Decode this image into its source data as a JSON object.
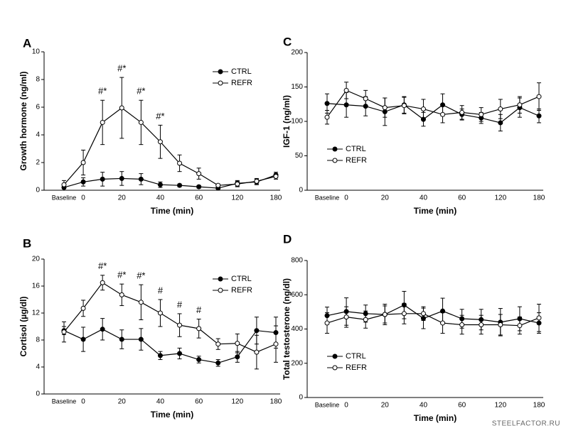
{
  "chart_data": [
    {
      "type": "line",
      "panel": "A",
      "x_label": "Time (min)",
      "y_label": "Growth hormone (ng/ml)",
      "categories": [
        "Baseline",
        "0",
        null,
        "20",
        null,
        "40",
        null,
        "60",
        null,
        "120",
        null,
        "180"
      ],
      "ylim": [
        0,
        10
      ],
      "yticks": [
        0,
        2,
        4,
        6,
        8,
        10
      ],
      "legend": "upper right",
      "series": [
        {
          "name": "CTRL",
          "color": "#000000",
          "marker_fill": "#000000",
          "values": [
            0.2,
            0.6,
            0.8,
            0.85,
            0.8,
            0.4,
            0.35,
            0.25,
            0.15,
            0.5,
            0.6,
            1.1
          ],
          "errors": [
            0.2,
            0.3,
            0.5,
            0.5,
            0.4,
            0.2,
            0.1,
            0.1,
            0.05,
            0.2,
            0.2,
            0.2
          ]
        },
        {
          "name": "REFR",
          "color": "#000000",
          "marker_fill": "#ffffff",
          "values": [
            0.4,
            2.0,
            4.9,
            5.95,
            4.9,
            3.5,
            1.95,
            1.2,
            0.35,
            0.45,
            0.65,
            1.0
          ],
          "errors": [
            0.3,
            0.9,
            1.6,
            2.2,
            1.6,
            1.2,
            0.6,
            0.4,
            0.1,
            0.2,
            0.2,
            0.2
          ]
        }
      ],
      "annotations": [
        null,
        null,
        "#*",
        "#*",
        "#*",
        "#*",
        null,
        null,
        null,
        null,
        null,
        null
      ]
    },
    {
      "type": "line",
      "panel": "B",
      "x_label": "Time (min)",
      "y_label": "Cortisol (µg/dl)",
      "categories": [
        "Baseline",
        "0",
        null,
        "20",
        null,
        "40",
        null,
        "60",
        null,
        "120",
        null,
        "180"
      ],
      "ylim": [
        0,
        20
      ],
      "yticks": [
        0,
        4,
        8,
        12,
        16,
        20
      ],
      "legend": "upper right",
      "series": [
        {
          "name": "CTRL",
          "color": "#000000",
          "marker_fill": "#000000",
          "values": [
            9.4,
            8.1,
            9.6,
            8.1,
            8.1,
            5.7,
            6.0,
            5.1,
            4.6,
            5.5,
            9.4,
            9.1
          ],
          "errors": [
            0.6,
            1.8,
            1.6,
            1.4,
            1.6,
            0.6,
            0.8,
            0.5,
            0.5,
            0.8,
            2.0,
            2.3
          ]
        },
        {
          "name": "REFR",
          "color": "#000000",
          "marker_fill": "#ffffff",
          "values": [
            9.2,
            12.7,
            16.5,
            14.7,
            13.6,
            12.0,
            10.2,
            9.7,
            7.4,
            7.5,
            6.2,
            7.4
          ],
          "errors": [
            1.5,
            1.2,
            1.1,
            1.6,
            2.6,
            2.0,
            1.7,
            1.4,
            0.8,
            1.4,
            2.5,
            2.7
          ]
        }
      ],
      "annotations": [
        null,
        null,
        "#*",
        "#*",
        "#*",
        "#",
        "#",
        "#",
        null,
        null,
        null,
        null
      ]
    },
    {
      "type": "line",
      "panel": "C",
      "x_label": "Time (min)",
      "y_label": "IGF-1 (ng/ml)",
      "categories": [
        "Baseline",
        "0",
        null,
        "20",
        null,
        "40",
        null,
        "60",
        null,
        "120",
        null,
        "180"
      ],
      "ylim": [
        0,
        200
      ],
      "yticks": [
        0,
        50,
        100,
        150,
        200
      ],
      "legend": "lower left",
      "series": [
        {
          "name": "CTRL",
          "color": "#000000",
          "marker_fill": "#000000",
          "values": [
            126,
            124,
            122,
            114,
            124,
            103,
            124,
            110,
            105,
            98,
            120,
            108
          ],
          "errors": [
            14,
            18,
            14,
            20,
            12,
            10,
            16,
            8,
            8,
            12,
            14,
            10
          ]
        },
        {
          "name": "REFR",
          "color": "#000000",
          "marker_fill": "#ffffff",
          "values": [
            106,
            145,
            133,
            120,
            123,
            118,
            110,
            113,
            110,
            118,
            124,
            136
          ],
          "errors": [
            10,
            12,
            12,
            14,
            12,
            14,
            12,
            10,
            10,
            14,
            12,
            20
          ]
        }
      ],
      "annotations": [
        null,
        null,
        null,
        null,
        null,
        null,
        null,
        null,
        null,
        null,
        null,
        null
      ]
    },
    {
      "type": "line",
      "panel": "D",
      "x_label": "Time (min)",
      "y_label": "Total testosterone (ng/dl)",
      "categories": [
        "Baseline",
        "0",
        null,
        "20",
        null,
        "40",
        null,
        "60",
        null,
        "120",
        null,
        "180"
      ],
      "ylim": [
        0,
        800
      ],
      "yticks": [
        0,
        200,
        400,
        600,
        800
      ],
      "legend": "lower left",
      "series": [
        {
          "name": "CTRL",
          "color": "#000000",
          "marker_fill": "#000000",
          "values": [
            478,
            502,
            490,
            485,
            540,
            462,
            505,
            460,
            455,
            440,
            460,
            435
          ],
          "errors": [
            50,
            80,
            50,
            60,
            80,
            60,
            75,
            55,
            60,
            80,
            70,
            60
          ]
        },
        {
          "name": "REFR",
          "color": "#000000",
          "marker_fill": "#ffffff",
          "values": [
            435,
            470,
            455,
            485,
            490,
            490,
            435,
            425,
            425,
            425,
            420,
            465
          ],
          "errors": [
            60,
            60,
            50,
            50,
            60,
            40,
            60,
            55,
            55,
            60,
            50,
            80
          ]
        }
      ],
      "annotations": [
        null,
        null,
        null,
        null,
        null,
        null,
        null,
        null,
        null,
        null,
        null,
        null
      ]
    }
  ],
  "watermark": "STEELFACTOR.RU"
}
